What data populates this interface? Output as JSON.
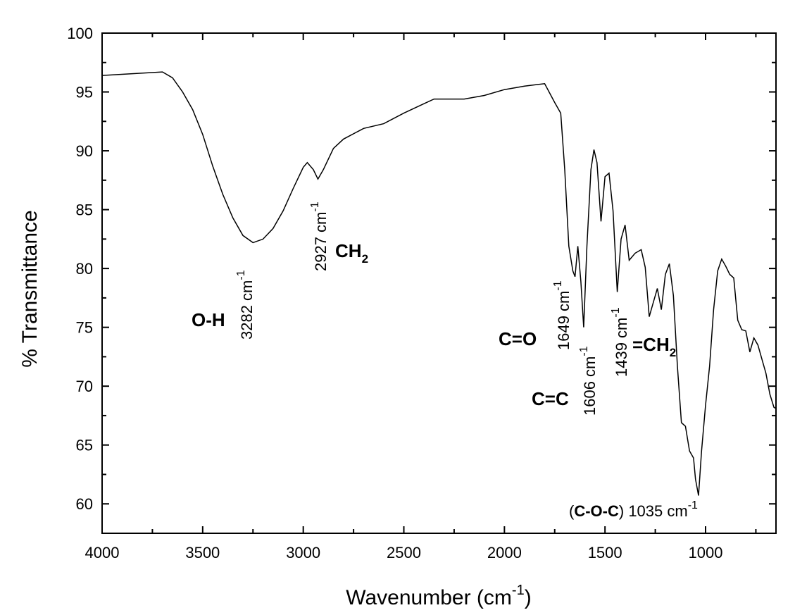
{
  "chart_data": {
    "type": "line",
    "x_label": [
      "Wavenumber (cm",
      "-1",
      ")"
    ],
    "y_label": "% Transmittance",
    "xlim": [
      4000,
      650
    ],
    "ylim": [
      57.5,
      100
    ],
    "xticks": [
      4000,
      3500,
      3000,
      2500,
      2000,
      1500,
      1000
    ],
    "xminorticks": [
      3750,
      3250,
      2750,
      2250,
      1750,
      1250,
      750
    ],
    "yticks": [
      60,
      65,
      70,
      75,
      80,
      85,
      90,
      95,
      100
    ],
    "yminorticks": [
      62.5,
      67.5,
      72.5,
      77.5,
      82.5,
      87.5,
      92.5,
      97.5
    ],
    "series": [
      {
        "color": "#000000",
        "x": [
          4000,
          3700,
          3650,
          3600,
          3550,
          3500,
          3450,
          3400,
          3350,
          3300,
          3250,
          3200,
          3150,
          3100,
          3050,
          3000,
          2980,
          2950,
          2927,
          2900,
          2850,
          2800,
          2700,
          2600,
          2500,
          2400,
          2350,
          2300,
          2200,
          2100,
          2000,
          1900,
          1800,
          1750,
          1720,
          1700,
          1680,
          1660,
          1649,
          1635,
          1620,
          1606,
          1590,
          1570,
          1555,
          1540,
          1520,
          1500,
          1480,
          1460,
          1439,
          1420,
          1400,
          1380,
          1350,
          1320,
          1300,
          1280,
          1260,
          1240,
          1220,
          1200,
          1180,
          1160,
          1140,
          1120,
          1100,
          1080,
          1060,
          1050,
          1035,
          1020,
          1000,
          980,
          960,
          940,
          920,
          900,
          880,
          860,
          840,
          820,
          800,
          780,
          760,
          740,
          720,
          700,
          680,
          660,
          650
        ],
        "values": [
          96.4,
          96.7,
          96.2,
          95.0,
          93.5,
          91.4,
          88.7,
          86.3,
          84.3,
          82.8,
          82.2,
          82.5,
          83.4,
          84.9,
          86.8,
          88.6,
          89.0,
          88.4,
          87.6,
          88.4,
          90.2,
          91.0,
          91.9,
          92.3,
          93.2,
          94.0,
          94.4,
          94.4,
          94.4,
          94.7,
          95.2,
          95.5,
          95.7,
          94.1,
          93.2,
          88.4,
          81.9,
          79.8,
          79.3,
          81.9,
          78.9,
          75.0,
          81.9,
          88.4,
          90.1,
          89.0,
          84.0,
          87.8,
          88.1,
          84.9,
          78.0,
          82.5,
          83.7,
          80.7,
          81.3,
          81.6,
          80.1,
          75.9,
          77.1,
          78.3,
          76.5,
          79.5,
          80.4,
          77.7,
          71.7,
          66.9,
          66.6,
          64.5,
          63.9,
          62.1,
          60.7,
          64.5,
          68.4,
          71.7,
          76.5,
          79.8,
          80.8,
          80.2,
          79.5,
          79.2,
          75.6,
          74.8,
          74.7,
          72.9,
          74.1,
          73.5,
          72.3,
          71.1,
          69.3,
          68.2,
          68.1
        ]
      }
    ],
    "annotations": [
      {
        "parts": [
          {
            "text": "O-H",
            "bold": true
          }
        ]
      },
      {
        "parts": [
          {
            "text": "3282 cm"
          },
          {
            "text": "-1",
            "sup": true
          }
        ]
      },
      {
        "parts": [
          {
            "text": "2927 cm"
          },
          {
            "text": "-1",
            "sup": true
          }
        ]
      },
      {
        "parts": [
          {
            "text": "CH",
            "bold": true
          },
          {
            "text": "2",
            "sub": true,
            "bold": true
          }
        ]
      },
      {
        "parts": [
          {
            "text": "C=O",
            "bold": true
          }
        ]
      },
      {
        "parts": [
          {
            "text": "1649 cm"
          },
          {
            "text": "-1",
            "sup": true
          }
        ]
      },
      {
        "parts": [
          {
            "text": "C=C",
            "bold": true
          }
        ]
      },
      {
        "parts": [
          {
            "text": "1606 cm"
          },
          {
            "text": "-1",
            "sup": true
          }
        ]
      },
      {
        "parts": [
          {
            "text": "1439 cm"
          },
          {
            "text": "-1",
            "sup": true
          }
        ]
      },
      {
        "parts": [
          {
            "text": "=CH",
            "bold": true
          },
          {
            "text": "2",
            "sub": true,
            "bold": true
          }
        ]
      },
      {
        "parts": [
          {
            "text": "("
          },
          {
            "text": "C-O-C",
            "bold": true
          },
          {
            "text": ") 1035 cm"
          },
          {
            "text": "-1",
            "sup": true
          }
        ]
      }
    ]
  }
}
